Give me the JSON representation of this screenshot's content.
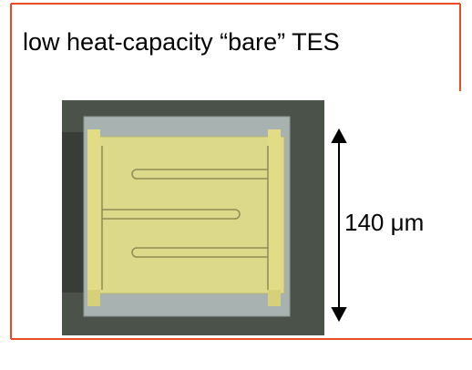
{
  "title": "low heat-capacity “bare” TES",
  "scale_label": "140 μm"
}
